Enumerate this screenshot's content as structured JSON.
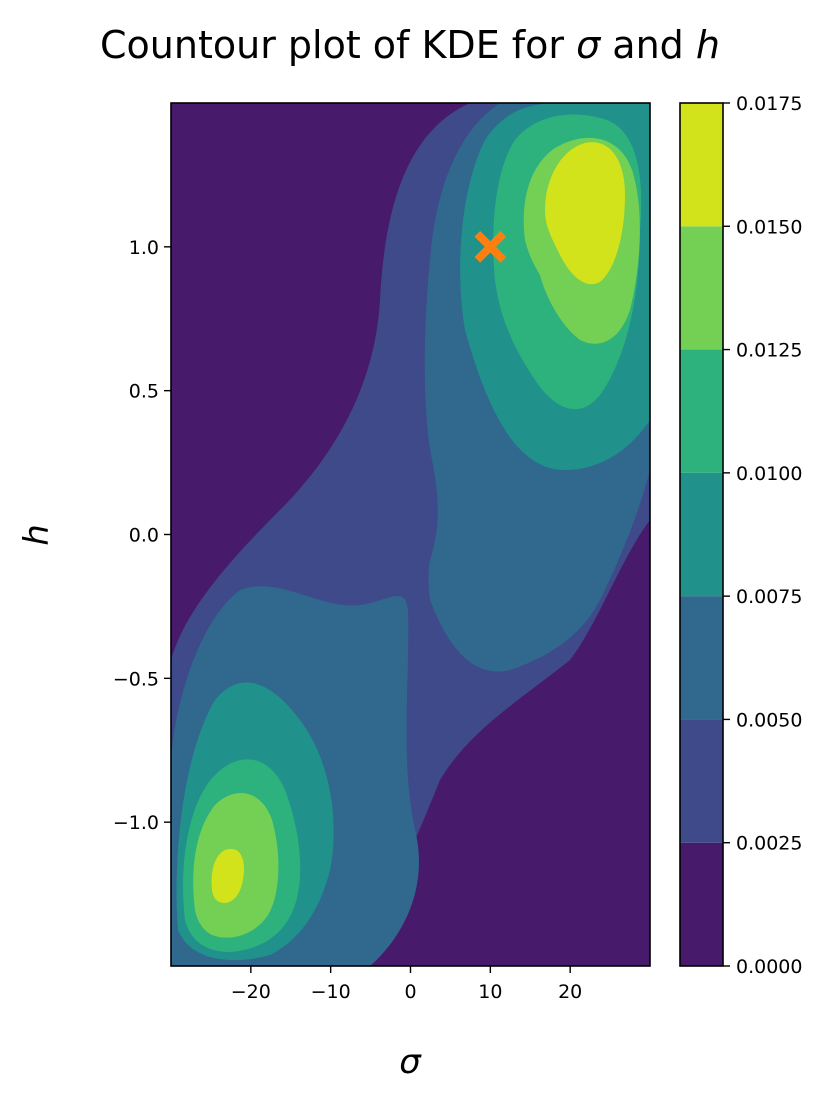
{
  "chart_data": {
    "type": "contour",
    "title_prefix": "Countour plot of KDE for ",
    "title_sigma": "σ",
    "title_and": " and ",
    "title_h": "h",
    "xlabel": "σ",
    "ylabel": "h",
    "xlim": [
      -30,
      30
    ],
    "ylim": [
      -1.5,
      1.5
    ],
    "x_ticks": [
      -20,
      -10,
      0,
      10,
      20
    ],
    "x_tick_labels": [
      "−20",
      "−10",
      "0",
      "10",
      "20"
    ],
    "y_ticks": [
      -1.0,
      -0.5,
      0.0,
      0.5,
      1.0
    ],
    "y_tick_labels": [
      "−1.0",
      "−0.5",
      "0.0",
      "0.5",
      "1.0"
    ],
    "colorbar": {
      "levels": [
        0.0,
        0.0025,
        0.005,
        0.0075,
        0.01,
        0.0125,
        0.015,
        0.0175
      ],
      "tick_labels": [
        "0.0000",
        "0.0025",
        "0.0050",
        "0.0075",
        "0.0100",
        "0.0125",
        "0.0150",
        "0.0175"
      ],
      "colors": [
        "#481a6c",
        "#3e4a89",
        "#31688e",
        "#21918c",
        "#2db27d",
        "#74d055",
        "#d2e21b"
      ]
    },
    "density_peaks": [
      {
        "sigma": 22,
        "h": 1.12,
        "level": 0.0175
      },
      {
        "sigma": -23,
        "h": -1.2,
        "level": 0.0175
      }
    ],
    "marker": {
      "sigma": 10,
      "h": 1.0,
      "symbol": "x",
      "color": "#ff7f0e"
    }
  }
}
